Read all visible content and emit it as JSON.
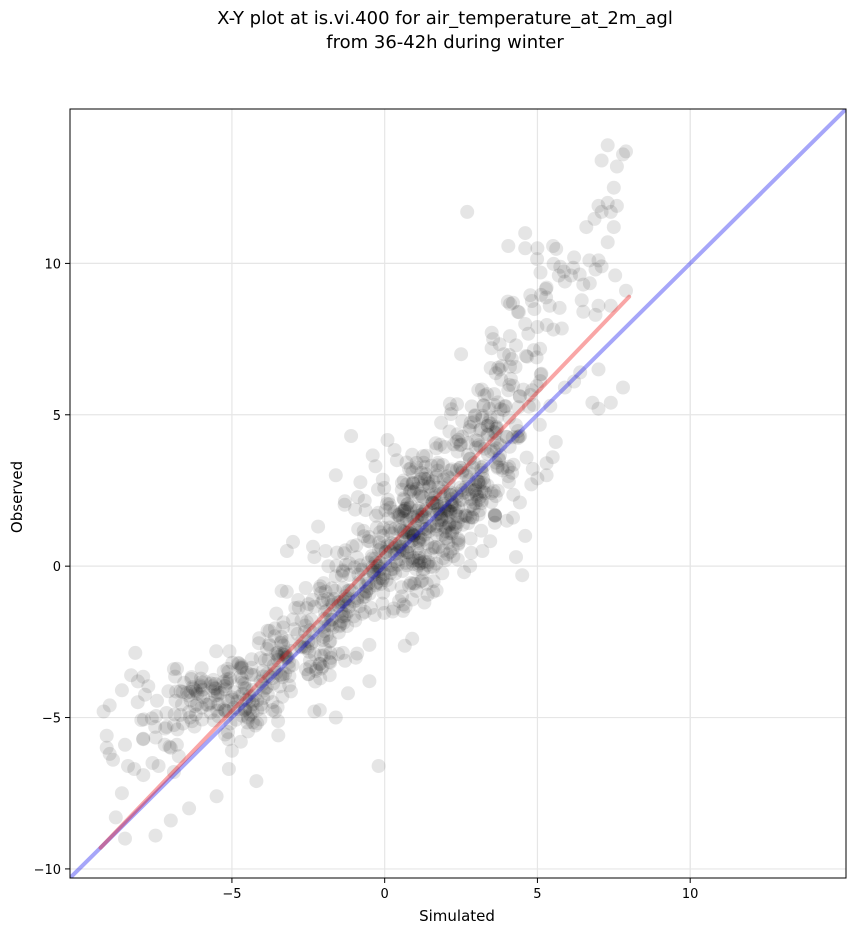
{
  "chart_data": {
    "type": "scatter",
    "title": [
      "X-Y plot at is.vi.400 for air_temperature_at_2m_agl",
      "from 36-42h during winter"
    ],
    "xlabel": "Simulated",
    "ylabel": "Observed",
    "xlim": [
      -10.3,
      15.1
    ],
    "ylim": [
      -10.3,
      15.1
    ],
    "x_ticks": [
      -5,
      0,
      5,
      10
    ],
    "y_ticks": [
      -10,
      -5,
      0,
      5,
      10
    ],
    "x_tick_labels": [
      "−5",
      "0",
      "5",
      "10"
    ],
    "y_tick_labels": [
      "−10",
      "−5",
      "0",
      "5",
      "10"
    ],
    "grid": true,
    "point_color": "#000000",
    "reference_line": {
      "color": "#0000ee",
      "x": [
        -10.3,
        15.1
      ],
      "y": [
        -10.3,
        15.1
      ]
    },
    "fit_line": {
      "color": "#ee0000",
      "x": [
        -9.3,
        8.0
      ],
      "y": [
        -9.3,
        8.9
      ]
    },
    "outliers": [
      [
        -9.2,
        -4.8
      ],
      [
        -9.0,
        -4.6
      ],
      [
        -8.6,
        -4.1
      ],
      [
        -8.3,
        -3.6
      ],
      [
        -9.1,
        -5.6
      ],
      [
        -9.1,
        -6.0
      ],
      [
        -9.0,
        -6.2
      ],
      [
        -8.5,
        -5.9
      ],
      [
        -8.4,
        -6.6
      ],
      [
        -8.2,
        -6.7
      ],
      [
        -7.9,
        -5.7
      ],
      [
        -7.9,
        -6.9
      ],
      [
        -7.6,
        -6.5
      ],
      [
        -7.4,
        -6.6
      ],
      [
        -7.2,
        -5.9
      ],
      [
        -7.0,
        -6.0
      ],
      [
        -6.8,
        -5.9
      ],
      [
        -6.6,
        -5.2
      ],
      [
        -6.9,
        -6.8
      ],
      [
        -8.6,
        -7.5
      ],
      [
        -8.8,
        -8.3
      ],
      [
        -8.5,
        -9.0
      ],
      [
        -7.5,
        -8.9
      ],
      [
        -7.0,
        -8.4
      ],
      [
        -6.4,
        -8.0
      ],
      [
        -5.5,
        -7.6
      ],
      [
        -5.1,
        -6.7
      ],
      [
        -5.0,
        -6.1
      ],
      [
        -4.2,
        -7.1
      ],
      [
        -0.2,
        -6.6
      ],
      [
        -2.3,
        -4.8
      ],
      [
        -1.6,
        -5.0
      ],
      [
        -1.8,
        -3.6
      ],
      [
        -1.2,
        -4.2
      ],
      [
        -0.5,
        -3.8
      ],
      [
        -0.5,
        -2.6
      ],
      [
        0.9,
        -2.4
      ],
      [
        -6.9,
        -3.4
      ],
      [
        -3.2,
        0.5
      ],
      [
        -3.0,
        0.8
      ],
      [
        -2.3,
        0.3
      ],
      [
        -1.6,
        3.0
      ],
      [
        -1.1,
        4.3
      ],
      [
        -0.3,
        3.3
      ],
      [
        0.4,
        3.5
      ],
      [
        0.8,
        3.2
      ],
      [
        2.7,
        11.7
      ],
      [
        2.5,
        7.0
      ],
      [
        3.5,
        7.2
      ],
      [
        3.9,
        7.0
      ],
      [
        4.1,
        7.6
      ],
      [
        4.2,
        8.7
      ],
      [
        4.6,
        8.0
      ],
      [
        5.0,
        7.9
      ],
      [
        4.6,
        10.5
      ],
      [
        4.6,
        11.0
      ],
      [
        5.0,
        10.5
      ],
      [
        5.1,
        9.7
      ],
      [
        5.3,
        9.2
      ],
      [
        5.4,
        8.6
      ],
      [
        5.7,
        9.6
      ],
      [
        5.9,
        9.4
      ],
      [
        6.1,
        9.6
      ],
      [
        6.2,
        10.2
      ],
      [
        6.6,
        11.2
      ],
      [
        6.7,
        10.1
      ],
      [
        7.0,
        10.1
      ],
      [
        7.0,
        11.9
      ],
      [
        7.1,
        11.7
      ],
      [
        7.4,
        11.7
      ],
      [
        7.5,
        11.2
      ],
      [
        7.3,
        12.0
      ],
      [
        7.1,
        13.4
      ],
      [
        7.3,
        13.9
      ],
      [
        7.5,
        12.5
      ],
      [
        7.6,
        13.2
      ],
      [
        7.8,
        13.6
      ],
      [
        7.9,
        13.7
      ],
      [
        7.6,
        11.9
      ],
      [
        7.3,
        10.7
      ],
      [
        7.1,
        9.9
      ],
      [
        6.9,
        9.8
      ],
      [
        6.5,
        9.3
      ],
      [
        6.5,
        8.4
      ],
      [
        6.9,
        8.3
      ],
      [
        7.0,
        8.6
      ],
      [
        7.4,
        8.6
      ],
      [
        7.9,
        9.1
      ],
      [
        7.8,
        5.9
      ],
      [
        7.4,
        5.4
      ],
      [
        7.0,
        5.2
      ],
      [
        7.0,
        6.5
      ],
      [
        6.8,
        5.4
      ],
      [
        6.4,
        6.4
      ],
      [
        6.2,
        6.1
      ],
      [
        5.9,
        5.9
      ],
      [
        5.6,
        4.1
      ],
      [
        5.5,
        3.6
      ],
      [
        5.3,
        3.4
      ],
      [
        5.3,
        3.0
      ],
      [
        5.0,
        2.9
      ],
      [
        4.8,
        2.7
      ],
      [
        4.6,
        1.0
      ],
      [
        4.5,
        -0.3
      ],
      [
        4.3,
        0.3
      ],
      [
        4.2,
        1.6
      ],
      [
        4.0,
        1.5
      ],
      [
        3.6,
        1.7
      ],
      [
        3.2,
        0.5
      ],
      [
        2.6,
        -0.2
      ],
      [
        2.0,
        0.2
      ],
      [
        1.7,
        -0.8
      ],
      [
        1.3,
        -1.2
      ],
      [
        1.6,
        -0.5
      ],
      [
        0.9,
        -1.1
      ],
      [
        0.3,
        -1.4
      ]
    ],
    "clusters": [
      {
        "x": -5.5,
        "y": -4.3,
        "sx": 1.1,
        "sy": 0.6,
        "r": -0.2,
        "n": 110
      },
      {
        "x": -3.2,
        "y": -3.0,
        "sx": 1.3,
        "sy": 1.0,
        "r": 0.55,
        "n": 140
      },
      {
        "x": -1.4,
        "y": -1.2,
        "sx": 1.0,
        "sy": 1.1,
        "r": 0.6,
        "n": 110
      },
      {
        "x": 0.9,
        "y": 1.2,
        "sx": 1.2,
        "sy": 1.3,
        "r": 0.5,
        "n": 260
      },
      {
        "x": 2.3,
        "y": 2.6,
        "sx": 1.1,
        "sy": 1.4,
        "r": 0.6,
        "n": 200
      },
      {
        "x": 3.7,
        "y": 4.8,
        "sx": 0.9,
        "sy": 1.5,
        "r": 0.5,
        "n": 100
      },
      {
        "x": 5.2,
        "y": 8.5,
        "sx": 0.9,
        "sy": 1.2,
        "r": 0.4,
        "n": 30
      },
      {
        "x": -7.4,
        "y": -5.2,
        "sx": 0.8,
        "sy": 0.8,
        "r": 0.2,
        "n": 20
      }
    ]
  }
}
